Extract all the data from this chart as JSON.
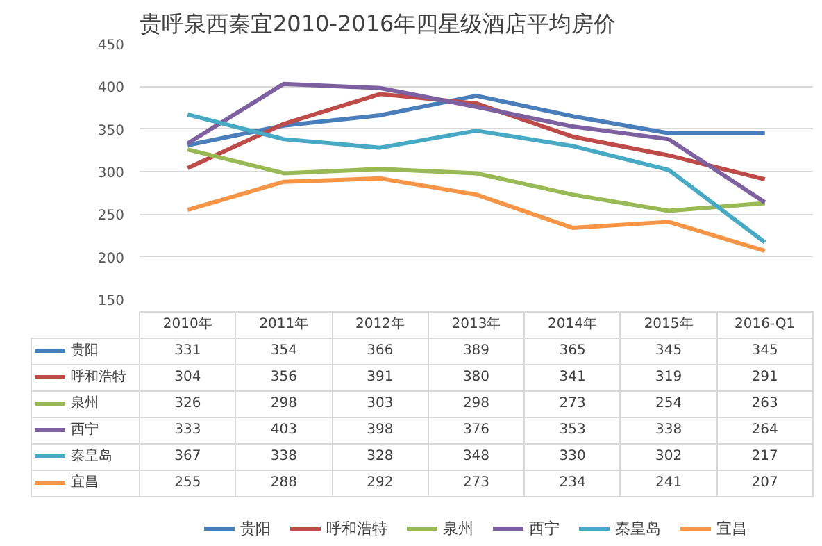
{
  "chart_data": {
    "type": "line",
    "title": "贵呼泉西秦宜2010-2016年四星级酒店平均房价",
    "categories": [
      "2010年",
      "2011年",
      "2012年",
      "2013年",
      "2014年",
      "2015年",
      "2016-Q1"
    ],
    "series": [
      {
        "name": "贵阳",
        "color": "#4a7ebb",
        "values": [
          331,
          354,
          366,
          389,
          365,
          345,
          345
        ]
      },
      {
        "name": "呼和浩特",
        "color": "#be4b48",
        "values": [
          304,
          356,
          391,
          380,
          341,
          319,
          291
        ]
      },
      {
        "name": "泉州",
        "color": "#98b954",
        "values": [
          326,
          298,
          303,
          298,
          273,
          254,
          263
        ]
      },
      {
        "name": "西宁",
        "color": "#7d60a0",
        "values": [
          333,
          403,
          398,
          376,
          353,
          338,
          264
        ]
      },
      {
        "name": "秦皇岛",
        "color": "#46aac5",
        "values": [
          367,
          338,
          328,
          348,
          330,
          302,
          217
        ]
      },
      {
        "name": "宜昌",
        "color": "#f69546",
        "values": [
          255,
          288,
          292,
          273,
          234,
          241,
          207
        ]
      }
    ],
    "ylim": [
      150,
      450
    ],
    "yticks": [
      150,
      200,
      250,
      300,
      350,
      400,
      450
    ],
    "grid": "y",
    "data_labels": true,
    "legend": "bottom",
    "marker": "none",
    "line_style": "solid"
  }
}
